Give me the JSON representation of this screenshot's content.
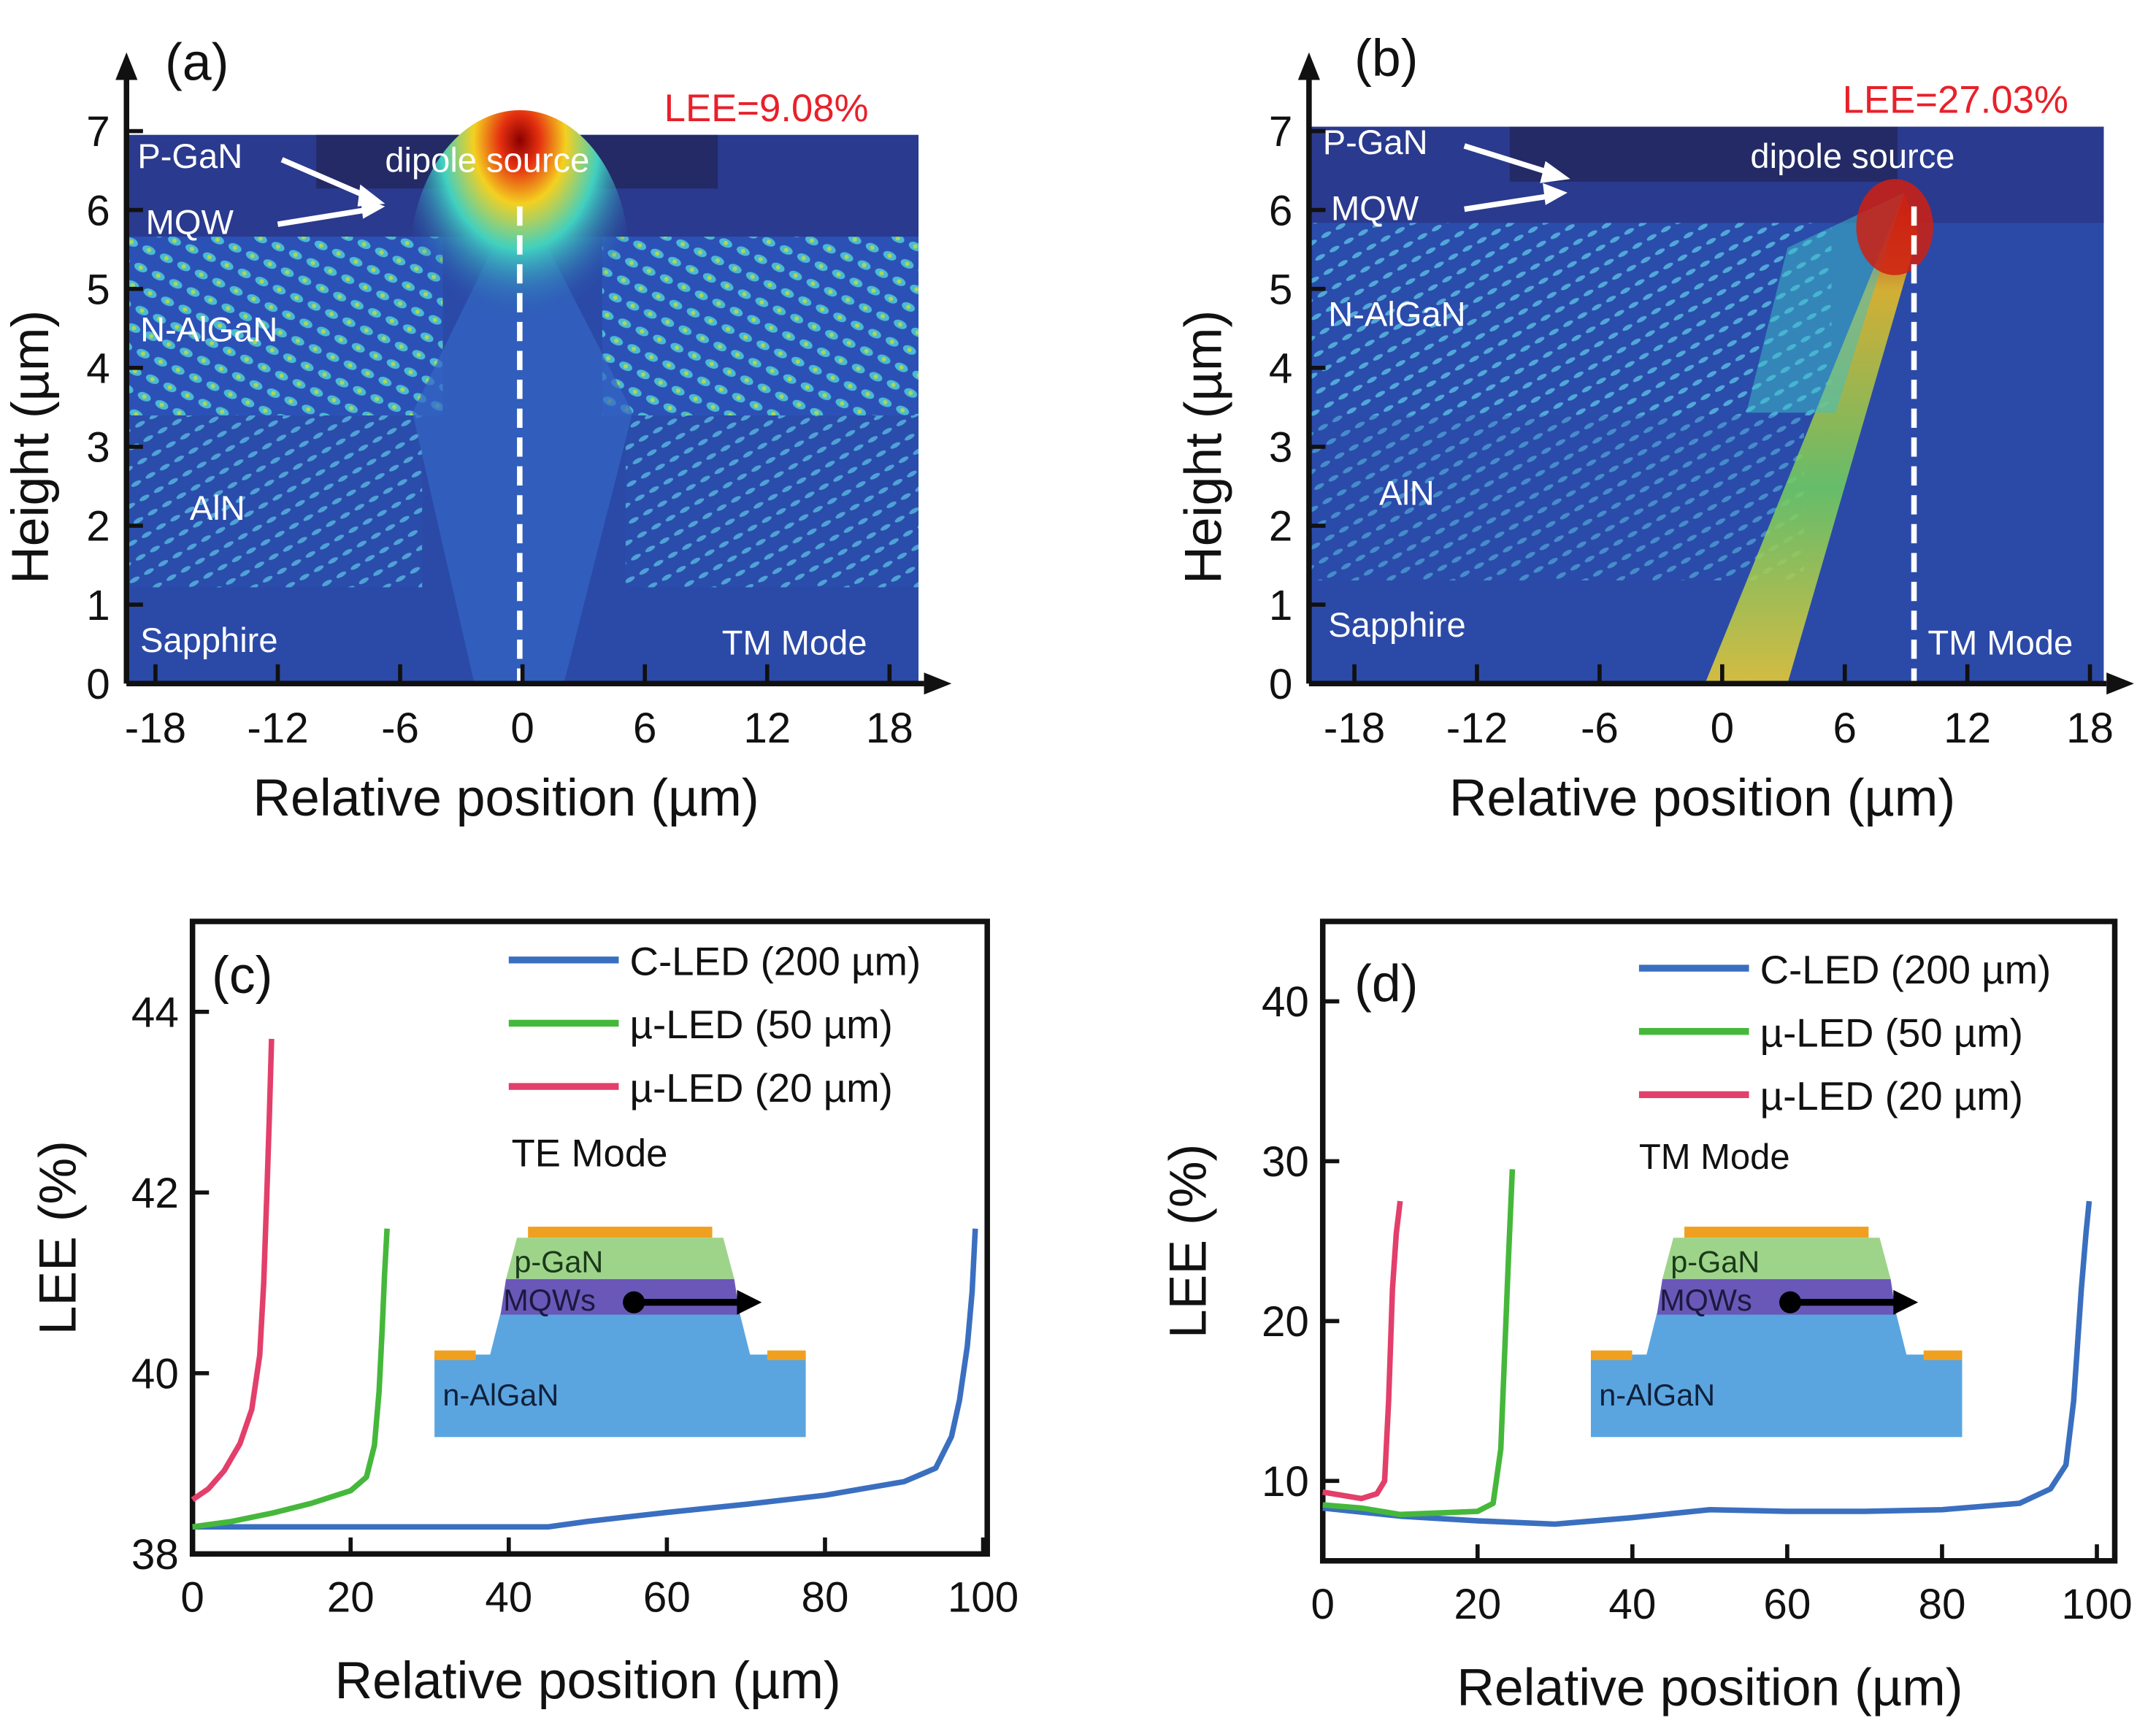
{
  "chart_data": [
    {
      "panel": "(a)",
      "type": "heatmap",
      "xlabel": "Relative position (µm)",
      "ylabel": "Height (µm)",
      "xticks": [
        "-18",
        "-12",
        "-6",
        "0",
        "6",
        "12",
        "18"
      ],
      "yticks": [
        "0",
        "1",
        "2",
        "3",
        "4",
        "5",
        "6",
        "7"
      ],
      "xlim": [
        -19.5,
        19.5
      ],
      "ylim": [
        0,
        7
      ],
      "annotation": "LEE=9.08%",
      "annotation_color": "#e8202a",
      "layer_labels": {
        "pgan": "P-GaN",
        "mqw": "MQW",
        "nalgan": "N-AlGaN",
        "aln": "AlN",
        "sapphire": "Sapphire",
        "dipole": "dipole source"
      },
      "mode": "TM Mode",
      "dipole_x": 0.3
    },
    {
      "panel": "(b)",
      "type": "heatmap",
      "xlabel": "Relative position (µm)",
      "ylabel": "Height (µm)",
      "xticks": [
        "-18",
        "-12",
        "-6",
        "0",
        "6",
        "12",
        "18"
      ],
      "yticks": [
        "0",
        "1",
        "2",
        "3",
        "4",
        "5",
        "6",
        "7"
      ],
      "xlim": [
        -20,
        19
      ],
      "ylim": [
        0,
        7
      ],
      "annotation": "LEE=27.03%",
      "annotation_color": "#e8202a",
      "layer_labels": {
        "pgan": "P-GaN",
        "mqw": "MQW",
        "nalgan": "N-AlGaN",
        "aln": "AlN",
        "sapphire": "Sapphire",
        "dipole": "dipole source"
      },
      "mode": "TM Mode",
      "dipole_x": 9.5
    },
    {
      "panel": "(c)",
      "type": "line",
      "xlabel": "Relative position (µm)",
      "ylabel": "LEE (%)",
      "xlim": [
        0,
        100
      ],
      "ylim": [
        38,
        45
      ],
      "xticks": [
        "0",
        "20",
        "40",
        "60",
        "80",
        "100"
      ],
      "yticks": [
        "38",
        "40",
        "42",
        "44"
      ],
      "mode": "TE Mode",
      "legend_position": "top-right",
      "inset": {
        "pgan": "p-GaN",
        "mqw": "MQWs",
        "nalgan": "n-AlGaN"
      },
      "series": [
        {
          "name": "C-LED (200 µm)",
          "color": "#3a6fc0",
          "x": [
            0,
            10,
            20,
            30,
            40,
            45,
            50,
            60,
            70,
            80,
            90,
            94,
            96,
            97,
            98,
            98.6,
            99
          ],
          "y": [
            38.3,
            38.3,
            38.3,
            38.3,
            38.3,
            38.3,
            38.36,
            38.46,
            38.55,
            38.65,
            38.8,
            38.95,
            39.3,
            39.7,
            40.3,
            40.9,
            41.6
          ]
        },
        {
          "name": "µ-LED (50 µm)",
          "color": "#45b83b",
          "x": [
            0,
            5,
            10,
            15,
            20,
            22,
            23,
            23.6,
            24,
            24.3,
            24.6
          ],
          "y": [
            38.3,
            38.36,
            38.45,
            38.56,
            38.7,
            38.85,
            39.2,
            39.8,
            40.5,
            41.1,
            41.6
          ]
        },
        {
          "name": "µ-LED (20 µm)",
          "color": "#e33f6b",
          "x": [
            0,
            2,
            4,
            6,
            7.5,
            8.5,
            9,
            9.4,
            9.7,
            10
          ],
          "y": [
            38.6,
            38.72,
            38.92,
            39.22,
            39.6,
            40.2,
            41.0,
            42.0,
            42.8,
            43.7
          ]
        }
      ]
    },
    {
      "panel": "(d)",
      "type": "line",
      "xlabel": "Relative position (µm)",
      "ylabel": "LEE (%)",
      "xlim": [
        0,
        100
      ],
      "ylim": [
        5,
        45
      ],
      "xticks": [
        "0",
        "20",
        "40",
        "60",
        "80",
        "100"
      ],
      "yticks": [
        "10",
        "20",
        "30",
        "40"
      ],
      "mode": "TM Mode",
      "legend_position": "top-right",
      "inset": {
        "pgan": "p-GaN",
        "mqw": "MQWs",
        "nalgan": "n-AlGaN"
      },
      "series": [
        {
          "name": "C-LED (200 µm)",
          "color": "#3a6fc0",
          "x": [
            0,
            10,
            20,
            30,
            40,
            50,
            60,
            70,
            80,
            90,
            94,
            96,
            97,
            98,
            98.6,
            99
          ],
          "y": [
            8.3,
            7.8,
            7.5,
            7.3,
            7.7,
            8.2,
            8.1,
            8.1,
            8.2,
            8.6,
            9.5,
            11,
            15,
            22,
            25.5,
            27.5
          ]
        },
        {
          "name": "µ-LED (50 µm)",
          "color": "#45b83b",
          "x": [
            0,
            5,
            10,
            20,
            22,
            23,
            23.5,
            24,
            24.5
          ],
          "y": [
            8.5,
            8.3,
            7.9,
            8.1,
            8.6,
            12,
            18,
            24,
            29.5
          ]
        },
        {
          "name": "µ-LED (20 µm)",
          "color": "#e33f6b",
          "x": [
            0,
            5,
            7,
            8,
            8.5,
            9,
            9.5,
            10
          ],
          "y": [
            9.3,
            8.9,
            9.2,
            10,
            15,
            22,
            25.5,
            27.5
          ]
        }
      ]
    }
  ]
}
